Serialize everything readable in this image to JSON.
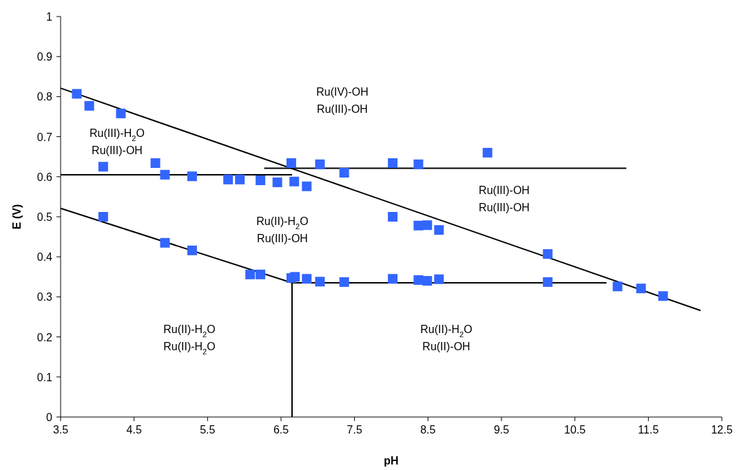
{
  "chart_data": {
    "type": "scatter",
    "xlabel": "pH",
    "ylabel": "E (V)",
    "xlim": [
      3.5,
      12.5
    ],
    "xticks": [
      3.5,
      4.5,
      5.5,
      6.5,
      7.5,
      8.5,
      9.5,
      10.5,
      11.5,
      12.5
    ],
    "ylim": [
      0,
      1
    ],
    "yticks": [
      0,
      0.1,
      0.2,
      0.3,
      0.4,
      0.5,
      0.6,
      0.7,
      0.8,
      0.9,
      1
    ],
    "grid": false,
    "series": [
      {
        "color": "#3366ff",
        "marker": "square",
        "x": [
          3.72,
          3.89,
          4.32,
          4.08,
          4.79,
          4.92,
          5.29,
          5.78,
          5.94,
          6.22,
          6.45,
          6.68,
          6.85,
          6.64,
          7.03,
          7.36,
          8.02,
          8.37,
          9.31,
          8.02,
          8.37,
          8.49,
          8.65,
          10.13,
          4.08,
          4.92,
          5.29,
          6.08,
          6.22,
          6.64,
          6.69,
          6.85,
          7.03,
          7.36,
          8.02,
          8.37,
          8.49,
          8.65,
          10.13,
          11.08,
          11.4,
          11.7
        ],
        "values": [
          0.807,
          0.777,
          0.758,
          0.625,
          0.634,
          0.605,
          0.601,
          0.593,
          0.593,
          0.591,
          0.586,
          0.588,
          0.576,
          0.634,
          0.631,
          0.61,
          0.634,
          0.631,
          0.66,
          0.5,
          0.478,
          0.479,
          0.467,
          0.407,
          0.5,
          0.435,
          0.416,
          0.356,
          0.356,
          0.347,
          0.35,
          0.345,
          0.338,
          0.337,
          0.345,
          0.342,
          0.34,
          0.344,
          0.337,
          0.326,
          0.321,
          0.302
        ]
      },
      {
        "type": "line",
        "color": "#000000",
        "x": [
          3.5,
          12.21
        ],
        "values": [
          0.821,
          0.266
        ]
      },
      {
        "type": "line",
        "color": "#000000",
        "x": [
          3.5,
          6.65
        ],
        "values": [
          0.605,
          0.605
        ]
      },
      {
        "type": "line",
        "color": "#000000",
        "x": [
          6.27,
          11.2
        ],
        "values": [
          0.621,
          0.621
        ]
      },
      {
        "type": "line",
        "color": "#000000",
        "x": [
          3.5,
          6.65
        ],
        "values": [
          0.521,
          0.335
        ]
      },
      {
        "type": "line",
        "color": "#000000",
        "x": [
          6.65,
          10.93
        ],
        "values": [
          0.335,
          0.335
        ]
      },
      {
        "type": "line",
        "color": "#000000",
        "x": [
          6.65,
          6.65
        ],
        "values": [
          0,
          0.335
        ]
      }
    ],
    "annotations": [
      "Ru(IV)-OH\nRu(III)-OH",
      "Ru(III)-H$_{2}$O\nRu(III)-OH",
      "Ru(III)-OH\nRu(III)-OH",
      "Ru(II)-H$_{2}$O\nRu(III)-OH",
      "Ru(II)-H$_{2}$O\nRu(II)-H$_{2}$O",
      "Ru(II)-H$_{2}$O\nRu(II)-OH"
    ]
  }
}
